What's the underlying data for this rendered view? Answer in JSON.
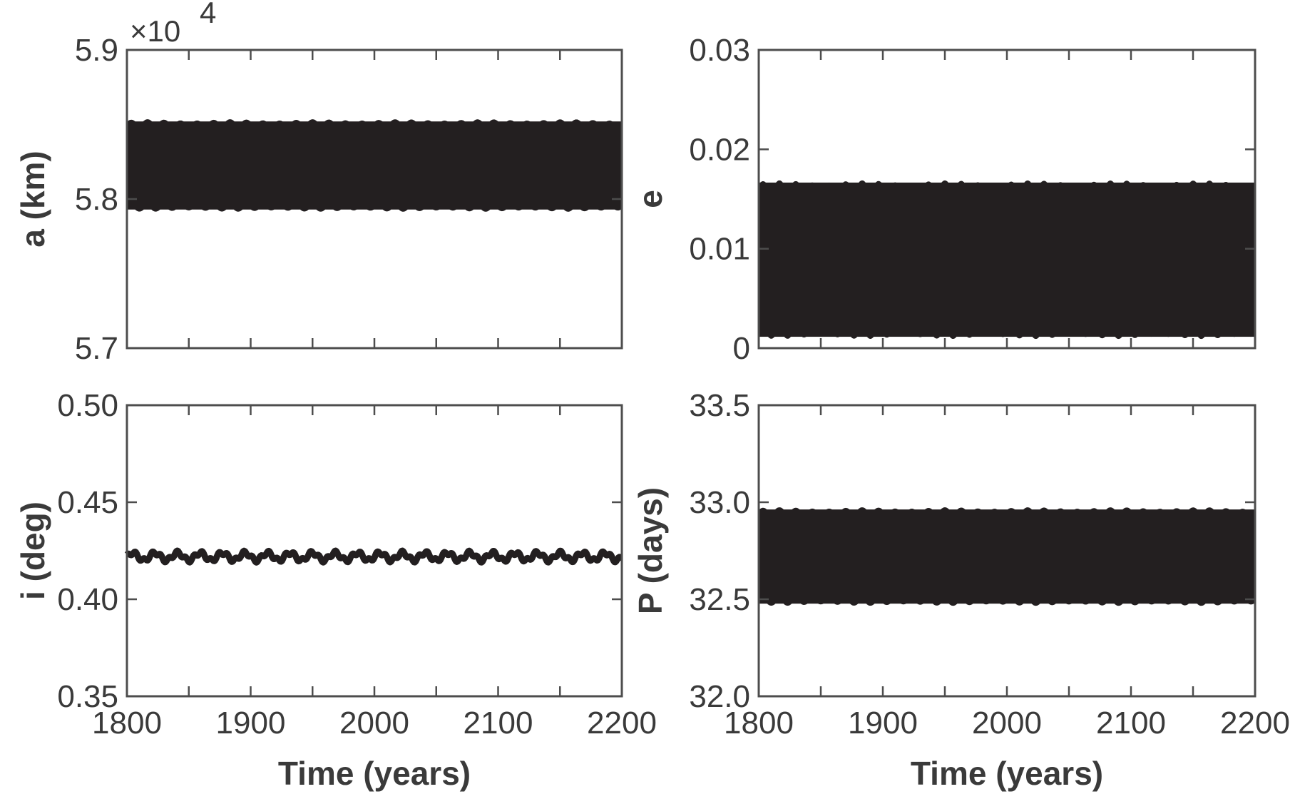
{
  "chart_data": [
    {
      "type": "line",
      "panel": "top-left",
      "ylabel": "a (km)",
      "xlabel": "",
      "xlim": [
        1800,
        2200
      ],
      "ylim": [
        5.7,
        5.9
      ],
      "x_ticks": [
        1800,
        1850,
        1900,
        1950,
        2000,
        2050,
        2100,
        2150,
        2200
      ],
      "x_tick_labels": [],
      "y_ticks": [
        5.7,
        5.8,
        5.9
      ],
      "y_tick_labels": [
        "5.7",
        "5.8",
        "5.9"
      ],
      "exponent_label": "×10",
      "exponent_power": "4",
      "series": [
        {
          "color": "#231f20",
          "band_min": 5.792,
          "band_max": 5.853,
          "cycles": 260,
          "smooth": false
        }
      ]
    },
    {
      "type": "line",
      "panel": "top-right",
      "ylabel": "e",
      "xlabel": "",
      "xlim": [
        1800,
        2200
      ],
      "ylim": [
        0,
        0.03
      ],
      "x_ticks": [
        1800,
        1850,
        1900,
        1950,
        2000,
        2050,
        2100,
        2150,
        2200
      ],
      "x_tick_labels": [],
      "y_ticks": [
        0,
        0.01,
        0.02,
        0.03
      ],
      "y_tick_labels": [
        "0",
        "0.01",
        "0.02",
        "0.03"
      ],
      "series": [
        {
          "color": "#231f20",
          "band_min": 0.001,
          "band_max": 0.0168,
          "cycles": 260,
          "smooth": false
        }
      ]
    },
    {
      "type": "line",
      "panel": "bottom-left",
      "ylabel": "i (deg)",
      "xlabel": "Time (years)",
      "xlim": [
        1800,
        2200
      ],
      "ylim": [
        0.35,
        0.5
      ],
      "x_ticks": [
        1800,
        1850,
        1900,
        1950,
        2000,
        2050,
        2100,
        2150,
        2200
      ],
      "x_tick_labels": [
        "1800",
        "1900",
        "2000",
        "2100",
        "2200"
      ],
      "y_ticks": [
        0.35,
        0.4,
        0.45,
        0.5
      ],
      "y_tick_labels": [
        "0.35",
        "0.40",
        "0.45",
        "0.50"
      ],
      "series": [
        {
          "color": "#231f20",
          "band_min": 0.419,
          "band_max": 0.425,
          "cycles": 22,
          "smooth": true
        }
      ]
    },
    {
      "type": "line",
      "panel": "bottom-right",
      "ylabel": "P (days)",
      "xlabel": "Time (years)",
      "xlim": [
        1800,
        2200
      ],
      "ylim": [
        32.0,
        33.5
      ],
      "x_ticks": [
        1800,
        1850,
        1900,
        1950,
        2000,
        2050,
        2100,
        2150,
        2200
      ],
      "x_tick_labels": [
        "1800",
        "1900",
        "2000",
        "2100",
        "2200"
      ],
      "y_ticks": [
        32.0,
        32.5,
        33.0,
        33.5
      ],
      "y_tick_labels": [
        "32.0",
        "32.5",
        "33.0",
        "33.5"
      ],
      "series": [
        {
          "color": "#231f20",
          "band_min": 32.47,
          "band_max": 32.97,
          "cycles": 260,
          "smooth": false
        }
      ]
    }
  ]
}
